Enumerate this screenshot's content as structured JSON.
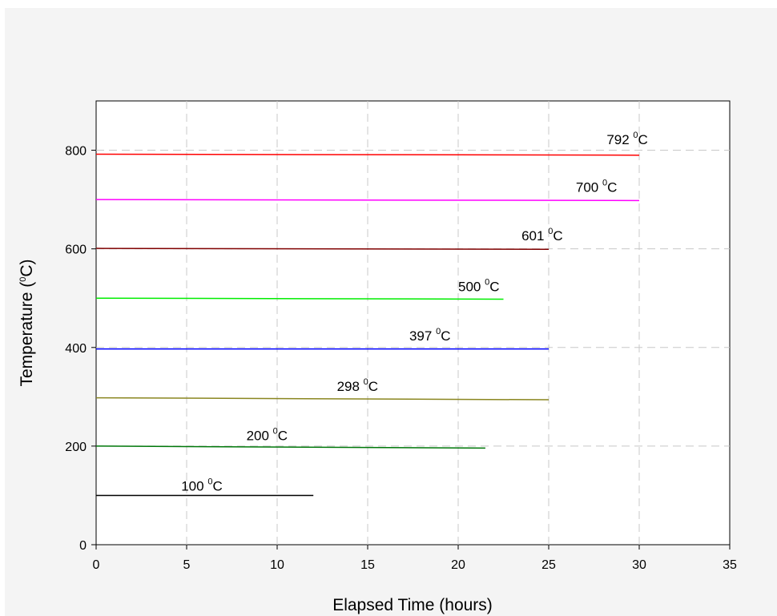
{
  "chart_data": {
    "type": "line",
    "title": "",
    "xlabel": "Elapsed Time (hours)",
    "ylabel": {
      "before": "Temperature (",
      "sup": "0",
      "after": "C)"
    },
    "xlim": [
      0,
      35
    ],
    "ylim": [
      0,
      900
    ],
    "xticks": [
      "0",
      "5",
      "10",
      "15",
      "20",
      "25",
      "30",
      "35"
    ],
    "yticks": [
      "0",
      "200",
      "400",
      "600",
      "800"
    ],
    "grid": true,
    "legend": "none",
    "series": [
      {
        "label": {
          "value": "100",
          "sup": "0",
          "unit": "C"
        },
        "color": "#000000",
        "x": [
          0,
          12
        ],
        "y": [
          100,
          100
        ],
        "label_at": [
          4.7,
          110
        ]
      },
      {
        "label": {
          "value": "200",
          "sup": "0",
          "unit": "C"
        },
        "color": "#00780a",
        "x": [
          0,
          21.5
        ],
        "y": [
          200,
          196
        ],
        "label_at": [
          8.3,
          212
        ]
      },
      {
        "label": {
          "value": "298",
          "sup": "0",
          "unit": "C"
        },
        "color": "#8a8620",
        "x": [
          0,
          25
        ],
        "y": [
          298,
          294
        ],
        "label_at": [
          13.3,
          312
        ]
      },
      {
        "label": {
          "value": "397",
          "sup": "0",
          "unit": "C"
        },
        "color": "#0000ff",
        "x": [
          0,
          25
        ],
        "y": [
          397,
          397
        ],
        "label_at": [
          17.3,
          414
        ]
      },
      {
        "label": {
          "value": "500",
          "sup": "0",
          "unit": "C"
        },
        "color": "#00ee00",
        "x": [
          0,
          22.5
        ],
        "y": [
          500,
          498
        ],
        "label_at": [
          20.0,
          514
        ]
      },
      {
        "label": {
          "value": "601",
          "sup": "0",
          "unit": "C"
        },
        "color": "#800000",
        "x": [
          0,
          25
        ],
        "y": [
          601,
          599
        ],
        "label_at": [
          23.5,
          617
        ]
      },
      {
        "label": {
          "value": "700",
          "sup": "0",
          "unit": "C"
        },
        "color": "#ff00ff",
        "x": [
          0,
          30
        ],
        "y": [
          700,
          698
        ],
        "label_at": [
          26.5,
          716
        ]
      },
      {
        "label": {
          "value": "792",
          "sup": "0",
          "unit": "C"
        },
        "color": "#ff0000",
        "x": [
          0,
          30
        ],
        "y": [
          792,
          790
        ],
        "label_at": [
          28.2,
          812
        ]
      }
    ]
  }
}
